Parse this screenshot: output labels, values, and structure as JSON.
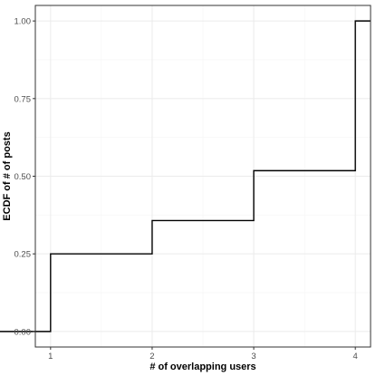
{
  "chart_data": {
    "type": "line",
    "step": true,
    "series": [
      {
        "x": [
          0.5,
          1,
          2,
          3,
          4,
          4.15
        ],
        "y": [
          0.0,
          0.25,
          0.3571,
          0.5179,
          1.0,
          1.0
        ]
      }
    ],
    "xlabel": "# of overlapping users",
    "ylabel": "ECDF of # of posts",
    "xticks": [
      1,
      2,
      3,
      4
    ],
    "xtick_labels": [
      "1",
      "2",
      "3",
      "4"
    ],
    "yticks": [
      0,
      0.25,
      0.5,
      0.75,
      1.0
    ],
    "ytick_labels": [
      "0.00",
      "0.25",
      "0.50",
      "0.75",
      "1.00"
    ],
    "xlim": [
      0.85,
      4.15
    ],
    "ylim": [
      -0.05,
      1.05
    ],
    "grid": true,
    "theme": "bw",
    "colors": {
      "line": "#000000",
      "grid": "#ebebeb",
      "panel_border": "#333333",
      "tick_text": "#4d4d4d"
    }
  }
}
